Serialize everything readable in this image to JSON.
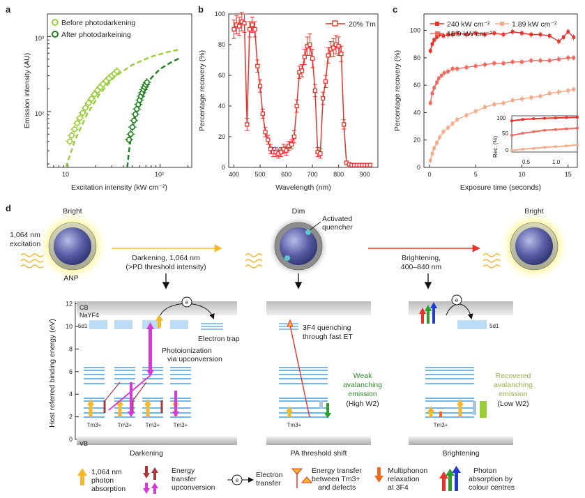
{
  "panels": {
    "a": {
      "label": "a",
      "ylabel": "Emission intensity (AU)",
      "xlabel": "Excitation intensity (kW cm⁻²)",
      "legend": [
        "Before photodarkening",
        "After photodarkeining"
      ],
      "yticks": [
        "10³",
        "10²"
      ],
      "xticks": [
        "10",
        "10²"
      ]
    },
    "b": {
      "label": "b",
      "ylabel": "Percentage recovery (%)",
      "xlabel": "Wavelength (nm)",
      "legend": "20% Tm"
    },
    "c": {
      "label": "c",
      "ylabel": "Percentage recovery (%)",
      "xlabel": "Exposure time (seconds)",
      "legend": [
        "240 kW cm⁻²",
        "1.89 kW cm⁻²",
        "18.9 kW cm⁻²"
      ],
      "inset_ylabel": "Rec. (%)",
      "inset_xticks": [
        "0.5",
        "1.0"
      ],
      "inset_yticks": [
        "100",
        "50",
        "0"
      ]
    },
    "d": {
      "label": "d",
      "states": [
        "Bright",
        "Dim",
        "Bright"
      ],
      "excitation": [
        "1,064 nm",
        "excitation"
      ],
      "anp": "ANP",
      "activated": [
        "Activated",
        "quencher"
      ],
      "darkening_arrow": [
        "Darkening, 1,064 nm",
        "(>PD threshold intensity)"
      ],
      "brightening_arrow": [
        "Brightening,",
        "400–840 nm"
      ],
      "energy_axis": "Host referred binding energy (eV)",
      "cb": "CB",
      "host": "NaYF4",
      "vb": "VB",
      "level_5d": "5d1",
      "electron_trap": "Electron trap",
      "photoionization": [
        "Photoionization",
        "via upconversion"
      ],
      "quenching": [
        "3F4 quenching",
        "through fast ET"
      ],
      "weak": [
        "Weak",
        "avalanching",
        "emission",
        "(High W2)"
      ],
      "recovered": [
        "Recovered",
        "avalanching",
        "emission",
        "(Low W2)"
      ],
      "tm": "Tm3+",
      "subtitles": [
        "Darkening",
        "PA threshold shift",
        "Brightening"
      ],
      "legend": [
        [
          "1,064 nm",
          "photon",
          "absorption"
        ],
        [
          "Energy",
          "transfer",
          "upconversion"
        ],
        [
          "Electron",
          "transfer"
        ],
        [
          "Energy transfer",
          "between Tm3+",
          "and defects"
        ],
        [
          "Multiphonon",
          "relaxation",
          "at 3F4"
        ],
        [
          "Photon",
          "absorption by",
          "colour centres"
        ]
      ]
    }
  },
  "chart_data": [
    {
      "type": "scatter",
      "xlabel": "Excitation intensity (kW cm⁻²)",
      "ylabel": "Emission intensity (AU)",
      "xscale": "log",
      "yscale": "log",
      "xlim": [
        6,
        220
      ],
      "ylim": [
        18,
        2000
      ],
      "series": [
        {
          "name": "Before photodarkening",
          "color": "#9acd3c",
          "x": [
            10.5,
            11,
            11.8,
            12.6,
            13.5,
            14.5,
            15.5,
            16.8,
            18,
            19.5,
            21,
            22.5,
            24,
            26,
            28,
            30,
            32,
            34
          ],
          "y": [
            40,
            48,
            58,
            70,
            82,
            96,
            112,
            130,
            148,
            170,
            192,
            212,
            232,
            255,
            278,
            300,
            320,
            345
          ]
        },
        {
          "name": "After photodarkeining",
          "color": "#1e7d1e",
          "x": [
            46,
            48,
            50,
            52,
            54,
            56,
            58,
            60,
            62,
            64,
            66,
            68,
            70,
            72
          ],
          "y": [
            42,
            50,
            62,
            76,
            92,
            108,
            124,
            142,
            160,
            178,
            196,
            212,
            228,
            245
          ]
        }
      ],
      "fits": [
        {
          "color": "#9acd3c",
          "x": [
            9.5,
            12,
            16,
            22,
            32,
            50,
            80,
            120,
            160
          ],
          "y": [
            18,
            42,
            90,
            170,
            290,
            420,
            540,
            620,
            670
          ]
        },
        {
          "color": "#1e7d1e",
          "x": [
            44,
            46,
            50,
            56,
            66,
            80,
            100,
            130,
            160
          ],
          "y": [
            18,
            30,
            62,
            110,
            190,
            280,
            370,
            450,
            510
          ]
        }
      ]
    },
    {
      "type": "line",
      "xlabel": "Wavelength (nm)",
      "ylabel": "Percentage recovery (%)",
      "xlim": [
        380,
        950
      ],
      "ylim": [
        0,
        100
      ],
      "xticks": [
        400,
        500,
        600,
        700,
        800,
        900
      ],
      "yticks": [
        0,
        20,
        40,
        60,
        80,
        100
      ],
      "series": [
        {
          "name": "20% Tm",
          "color": "#e8322b",
          "x": [
            400,
            410,
            420,
            430,
            440,
            450,
            460,
            470,
            480,
            490,
            500,
            510,
            520,
            530,
            540,
            550,
            560,
            570,
            580,
            590,
            600,
            610,
            620,
            630,
            640,
            650,
            660,
            670,
            680,
            690,
            700,
            710,
            720,
            730,
            740,
            750,
            760,
            770,
            780,
            790,
            800,
            810,
            820,
            830,
            840,
            850,
            860,
            870,
            880,
            890,
            900,
            910,
            920
          ],
          "y": [
            90,
            93,
            92,
            95,
            94,
            28,
            90,
            93,
            90,
            66,
            53,
            35,
            23,
            18,
            12,
            10,
            10,
            9,
            10,
            12,
            11,
            14,
            15,
            20,
            40,
            62,
            63,
            72,
            79,
            80,
            71,
            50,
            10,
            9,
            45,
            56,
            73,
            77,
            78,
            80,
            79,
            74,
            28,
            3,
            2,
            1.5,
            1.5,
            1.5,
            1.5,
            1.5,
            1.5,
            1.5,
            1.5
          ],
          "err": [
            6,
            6,
            6,
            6,
            6,
            4,
            5,
            5,
            5,
            4,
            4,
            3,
            3,
            3,
            3,
            3,
            3,
            3,
            3,
            3,
            3,
            3,
            3,
            4,
            4,
            4,
            4,
            5,
            6,
            7,
            6,
            4,
            3,
            3,
            4,
            4,
            5,
            5,
            6,
            6,
            6,
            5,
            3,
            1,
            1,
            1,
            1,
            1,
            1,
            1,
            1,
            1,
            1
          ]
        }
      ]
    },
    {
      "type": "line",
      "xlabel": "Exposure time (seconds)",
      "ylabel": "Percentage recovery (%)",
      "xlim": [
        -0.6,
        16
      ],
      "ylim": [
        0,
        112
      ],
      "xticks": [
        0,
        5,
        10,
        15
      ],
      "yticks": [
        0,
        20,
        40,
        60,
        80,
        100
      ],
      "series": [
        {
          "name": "240 kW cm⁻²",
          "color": "#e8322b",
          "x": [
            0.1,
            0.3,
            0.5,
            0.8,
            1.1,
            1.5,
            2,
            2.5,
            3,
            4,
            5,
            6,
            7,
            8,
            9,
            10,
            11,
            12,
            13,
            14,
            14.5,
            15,
            15.6
          ],
          "y": [
            85,
            90,
            93,
            95,
            97,
            96,
            97,
            97,
            98,
            97,
            98,
            97,
            98,
            97,
            99,
            98,
            97,
            97,
            96,
            92,
            95,
            99,
            95
          ]
        },
        {
          "name": "18.9 kW cm⁻²",
          "color": "#f0695f",
          "x": [
            0.1,
            0.3,
            0.5,
            0.8,
            1,
            1.3,
            1.6,
            2,
            2.5,
            3,
            4,
            5,
            6,
            7,
            8,
            9,
            10,
            11,
            12,
            13,
            14,
            15,
            15.6
          ],
          "y": [
            47,
            54,
            58,
            62,
            65,
            67,
            69,
            70,
            72,
            72,
            73,
            74,
            75,
            76,
            76,
            77,
            77,
            78,
            78,
            78,
            79,
            80,
            80
          ]
        },
        {
          "name": "1.89 kW cm⁻²",
          "color": "#f5aa8a",
          "x": [
            0.1,
            0.3,
            0.5,
            0.8,
            1.1,
            1.5,
            2,
            2.5,
            3,
            4,
            5,
            6,
            7,
            8,
            9,
            10,
            11,
            12,
            13,
            14,
            15,
            15.6
          ],
          "y": [
            5,
            10,
            14,
            18,
            22,
            26,
            29,
            32,
            35,
            38,
            41,
            44,
            46,
            47,
            49,
            50,
            51,
            52,
            54,
            55,
            56,
            57
          ]
        }
      ],
      "inset": {
        "xlabel": "",
        "ylabel": "Rec. (%)",
        "xlim": [
          0.2,
          1.4
        ],
        "ylim": [
          0,
          100
        ],
        "series": [
          {
            "color": "#e8322b",
            "x": [
              0.2,
              0.4,
              0.6,
              0.8,
              1.0,
              1.2,
              1.4
            ],
            "y": [
              86,
              90,
              92,
              93,
              94,
              95,
              96
            ]
          },
          {
            "color": "#f0695f",
            "x": [
              0.2,
              0.4,
              0.6,
              0.8,
              1.0,
              1.2,
              1.4
            ],
            "y": [
              46,
              52,
              56,
              60,
              62,
              64,
              66
            ]
          },
          {
            "color": "#f5aa8a",
            "x": [
              0.2,
              0.4,
              0.6,
              0.8,
              1.0,
              1.2,
              1.4
            ],
            "y": [
              4,
              8,
              10,
              13,
              15,
              17,
              20
            ]
          }
        ]
      }
    }
  ]
}
